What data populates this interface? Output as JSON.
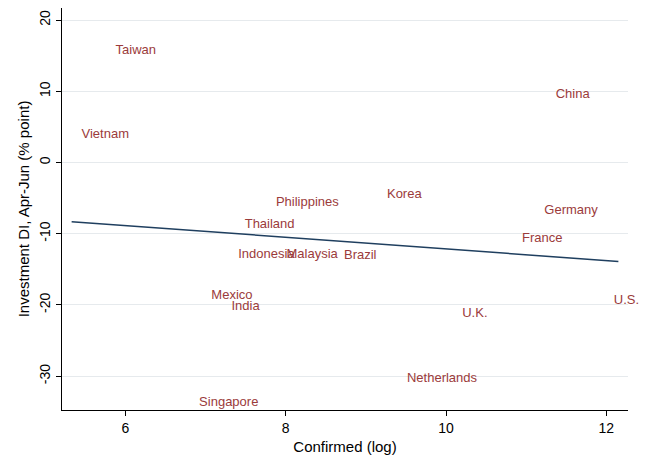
{
  "chart_data": {
    "type": "scatter",
    "x_label": "Confirmed (log)",
    "y_label": "Investment DI, Apr-Jun (% point)",
    "labels": [
      "Taiwan",
      "China",
      "Vietnam",
      "Korea",
      "Philippines",
      "Germany",
      "Thailand",
      "France",
      "Indonesia",
      "Malaysia",
      "Brazil",
      "Mexico",
      "India",
      "U.K.",
      "U.S.",
      "Netherlands",
      "Singapore"
    ],
    "x": [
      6.13,
      11.58,
      5.75,
      9.48,
      8.27,
      11.56,
      7.8,
      11.2,
      7.76,
      8.33,
      8.93,
      7.33,
      7.5,
      10.36,
      12.25,
      9.95,
      7.29
    ],
    "values": [
      15.7,
      9.5,
      3.9,
      -4.5,
      -5.6,
      -6.7,
      -8.7,
      -10.7,
      -12.9,
      -13.0,
      -13.1,
      -18.7,
      -20.3,
      -21.3,
      -19.4,
      -30.3,
      -33.7
    ],
    "color": "#9b3b3b",
    "marker": "none",
    "fit_line": {
      "x": [
        5.33,
        12.15
      ],
      "values": [
        -8.3,
        -13.9
      ],
      "color": "#1f3f5f"
    },
    "xlim": [
      5.21,
      12.27
    ],
    "xticks": [
      6,
      8,
      10,
      12
    ],
    "ylim": [
      -34.75,
      21.7
    ],
    "yticks": [
      -30,
      -20,
      -10,
      0,
      10,
      20
    ],
    "grid": true
  }
}
